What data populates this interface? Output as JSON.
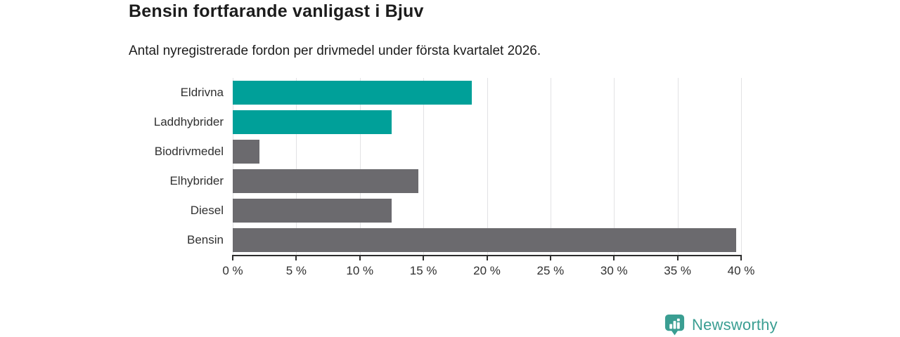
{
  "header": {
    "title": "Bensin fortfarande vanligast i Bjuv",
    "subtitle": "Antal nyregistrerade fordon per drivmedel under första kvartalet 2026."
  },
  "chart_data": {
    "type": "bar",
    "orientation": "horizontal",
    "title": "Bensin fortfarande vanligast i Bjuv",
    "subtitle": "Antal nyregistrerade fordon per drivmedel under första kvartalet 2026.",
    "categories": [
      "Eldrivna",
      "Laddhybrider",
      "Biodrivmedel",
      "Elhybrider",
      "Diesel",
      "Bensin"
    ],
    "values": [
      18.8,
      12.5,
      2.1,
      14.6,
      12.5,
      39.6
    ],
    "unit": "%",
    "xlim": [
      0,
      40
    ],
    "x_tick_values": [
      0,
      5,
      10,
      15,
      20,
      25,
      30,
      35,
      40
    ],
    "x_tick_labels": [
      "0 %",
      "5 %",
      "10 %",
      "15 %",
      "20 %",
      "25 %",
      "30 %",
      "35 %",
      "40 %"
    ],
    "grid": true,
    "legend": "none",
    "bar_colors": [
      "#00a099",
      "#00a099",
      "#6b6a6e",
      "#6b6a6e",
      "#6b6a6e",
      "#6b6a6e"
    ],
    "colors": {
      "highlight": "#00a099",
      "default": "#6b6a6e",
      "gridline": "#e2e2e4",
      "axis": "#2d2d2d",
      "text": "#303030"
    }
  },
  "footer": {
    "brand": "Newsworthy",
    "brand_color": "#3a9e92"
  }
}
